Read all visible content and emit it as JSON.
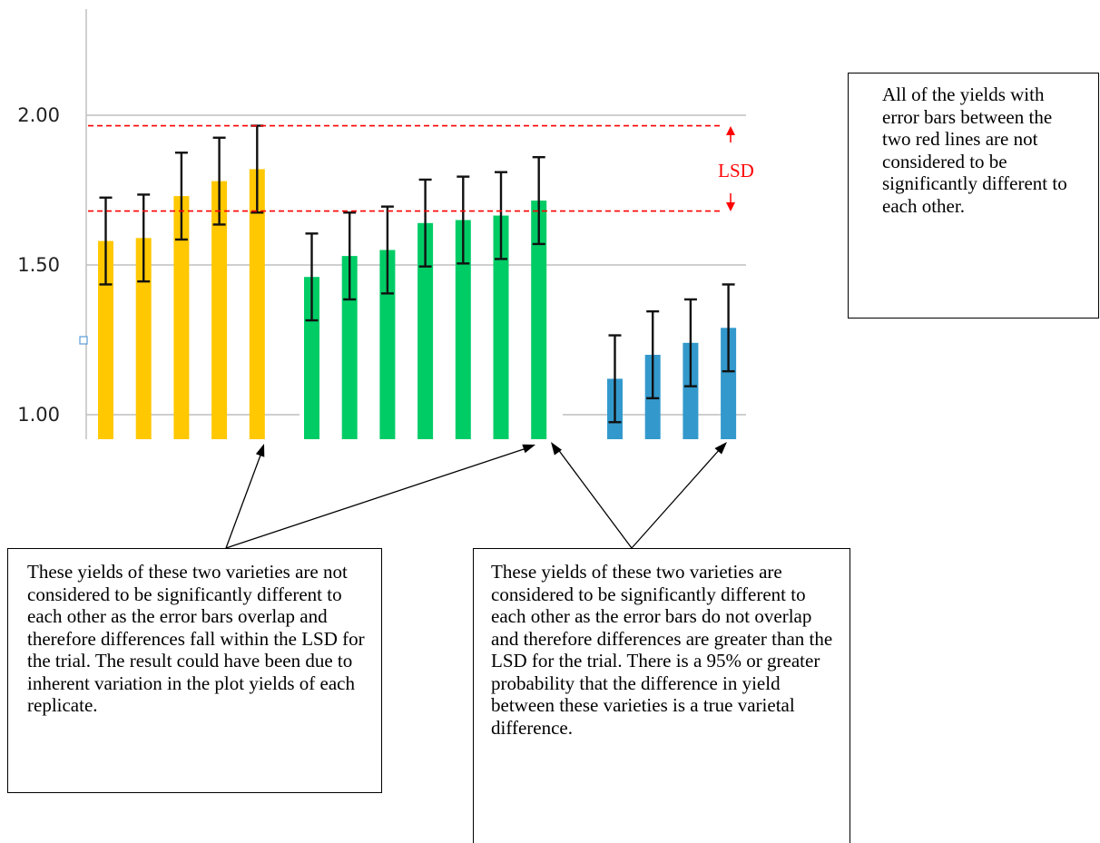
{
  "chart_data": {
    "type": "bar",
    "title": "",
    "xlabel": "",
    "ylabel": "",
    "ylim": [
      0.9,
      2.5
    ],
    "yticks": [
      "1.00",
      "1.50",
      "2.00"
    ],
    "grid": true,
    "groups": [
      {
        "color": "#FFC800",
        "values": [
          1.58,
          1.59,
          1.73,
          1.78,
          1.82
        ],
        "error": 0.145
      },
      {
        "color": "#00CC66",
        "values": [
          1.46,
          1.53,
          1.55,
          1.64,
          1.65,
          1.665,
          1.715
        ],
        "error": 0.145
      },
      {
        "color": "#3399CC",
        "values": [
          1.12,
          1.2,
          1.24,
          1.29
        ],
        "error": 0.145
      }
    ],
    "lsd_lines": [
      1.965,
      1.68
    ],
    "lsd_color": "#FF0000",
    "annotations": {
      "lsd_label": "LSD"
    }
  },
  "notes": {
    "right": "All of the yields with error bars between the two red lines are not considered to be significantly different to each other.",
    "left": "These yields of these two varieties are not considered to be significantly different to each other as the error bars overlap and therefore differences fall within the LSD for the trial. The result could have been due to inherent variation in the plot yields of each replicate.",
    "mid": "These yields of these two varieties are considered to be significantly different to each other as the error bars do not overlap and therefore differences are greater than the LSD for the trial. There is a 95% or greater probability that the difference in yield between these varieties is a true varietal difference."
  }
}
